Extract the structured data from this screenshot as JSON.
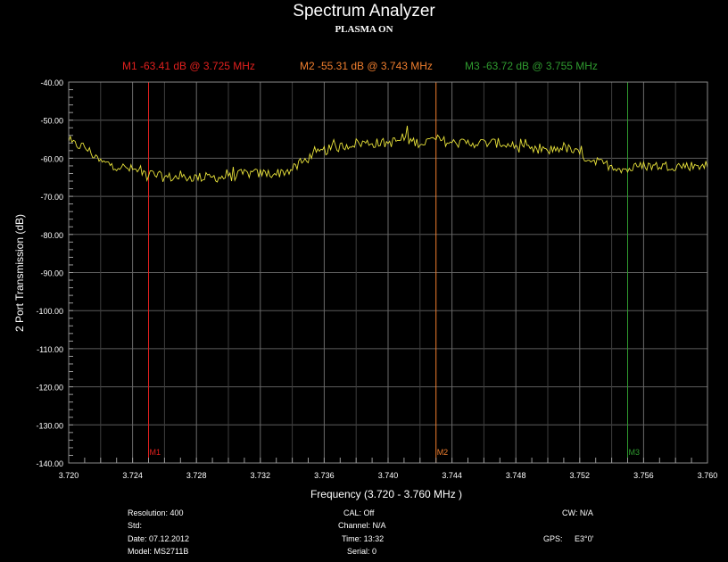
{
  "header": {
    "title": "Spectrum Analyzer",
    "subtitle": "PLASMA ON"
  },
  "markers": [
    {
      "name": "M1",
      "readout": "M1  -63.41 dB @ 3.725 MHz",
      "freq": 3.725,
      "level": -63.41,
      "color": "#e0201e"
    },
    {
      "name": "M2",
      "readout": "M2  -55.31 dB @ 3.743 MHz",
      "freq": 3.743,
      "level": -55.31,
      "color": "#ef7e2e"
    },
    {
      "name": "M3",
      "readout": "M3  -63.72 dB @ 3.755 MHz",
      "freq": 3.755,
      "level": -63.72,
      "color": "#2f9a2f"
    }
  ],
  "chart_data": {
    "type": "line",
    "title": "Spectrum Analyzer",
    "subtitle": "PLASMA ON",
    "xlabel": "Frequency (3.720 - 3.760 MHz )",
    "ylabel": "2 Port Transmission (dB)",
    "xlim": [
      3.72,
      3.76
    ],
    "ylim": [
      -140,
      -40
    ],
    "x_ticks": [
      "3.720",
      "3.724",
      "3.728",
      "3.732",
      "3.736",
      "3.740",
      "3.744",
      "3.748",
      "3.752",
      "3.756",
      "3.760"
    ],
    "y_ticks": [
      "-40.00",
      "-50.00",
      "-60.00",
      "-70.00",
      "-80.00",
      "-90.00",
      "-100.00",
      "-110.00",
      "-120.00",
      "-130.00",
      "-140.00"
    ],
    "grid": true,
    "series": [
      {
        "color": "#e8e23a",
        "x": [
          3.72,
          3.721,
          3.722,
          3.723,
          3.724,
          3.725,
          3.726,
          3.727,
          3.728,
          3.729,
          3.73,
          3.731,
          3.732,
          3.733,
          3.734,
          3.735,
          3.736,
          3.737,
          3.738,
          3.739,
          3.74,
          3.741,
          3.742,
          3.743,
          3.744,
          3.745,
          3.746,
          3.747,
          3.748,
          3.749,
          3.75,
          3.751,
          3.752,
          3.753,
          3.754,
          3.755,
          3.756,
          3.757,
          3.758,
          3.759,
          3.76
        ],
        "y": [
          -56,
          -57,
          -61,
          -62,
          -63,
          -64,
          -65,
          -65,
          -65,
          -65,
          -65,
          -64,
          -64,
          -64,
          -63,
          -60,
          -58,
          -57,
          -56,
          -56,
          -56,
          -55,
          -56,
          -55,
          -56,
          -56,
          -56,
          -56,
          -57,
          -58,
          -58,
          -57,
          -59,
          -61,
          -62,
          -63,
          -62,
          -62,
          -62,
          -62,
          -62
        ]
      }
    ]
  },
  "info": {
    "resolution": "Resolution: 400",
    "std": "Std:",
    "date": "Date: 07.12.2012",
    "model": "Model: MS2711B",
    "cal": "CAL: Off",
    "channel": "Channel: N/A",
    "time": "Time: 13:32",
    "serial": "Serial: 0",
    "cw": "CW: N/A",
    "gps_label": "GPS:",
    "gps_value": "E3°0'"
  }
}
